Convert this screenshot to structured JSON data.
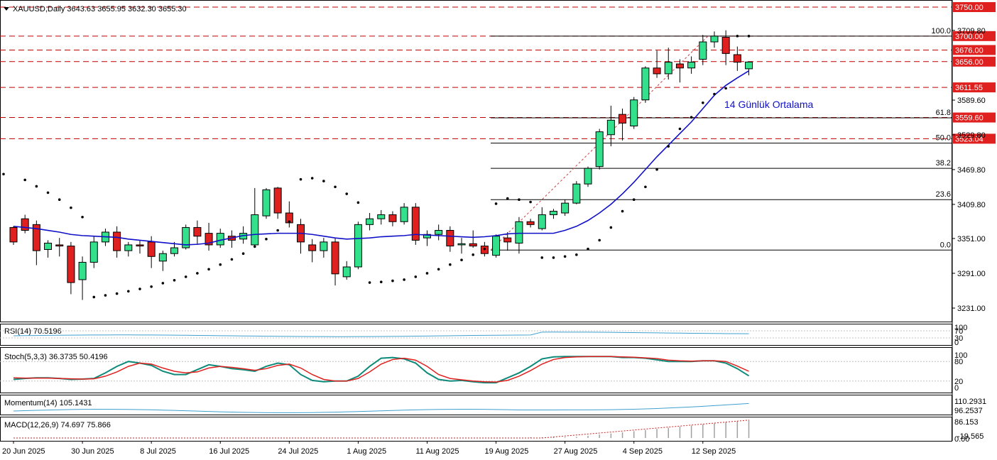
{
  "header": {
    "symbol_line": "XAUUSD,Daily  3643.63 3655.95 3632.30 3655.30"
  },
  "colors": {
    "bull": "#33e08c",
    "bear": "#e0201e",
    "candle_border": "#000000",
    "ma": "#1010c8",
    "sar": "#000000",
    "level_line": "#c00000",
    "level_badge": "#e0201e",
    "stoch_main": "#0e8a7a",
    "stoch_signal": "#e0201e",
    "rsi": "#40a0d0",
    "momentum": "#40a0d0",
    "macd_hist": "#a0a0a0",
    "macd_signal": "#d02020"
  },
  "chart_data": {
    "type": "candlestick",
    "symbol": "XAUUSD",
    "timeframe": "Daily",
    "ylim": [
      3200,
      3760
    ],
    "price_ticks": [
      "3750.00",
      "3709.80",
      "3700.00",
      "3676.00",
      "3656.00",
      "3611.55",
      "3589.60",
      "3559.60",
      "3529.80",
      "3523.04",
      "3469.80",
      "3409.80",
      "3351.00",
      "3291.00",
      "3231.00"
    ],
    "date_labels": [
      {
        "i": 0,
        "label": "20 Jun 2025"
      },
      {
        "i": 6,
        "label": "30 Jun 2025"
      },
      {
        "i": 12,
        "label": "8 Jul 2025"
      },
      {
        "i": 18,
        "label": "16 Jul 2025"
      },
      {
        "i": 24,
        "label": "24 Jul 2025"
      },
      {
        "i": 30,
        "label": "1 Aug 2025"
      },
      {
        "i": 36,
        "label": "11 Aug 2025"
      },
      {
        "i": 42,
        "label": "19 Aug 2025"
      },
      {
        "i": 48,
        "label": "27 Aug 2025"
      },
      {
        "i": 54,
        "label": "4 Sep 2025"
      },
      {
        "i": 60,
        "label": "12 Sep 2025"
      }
    ],
    "candles": [
      [
        3370,
        3372,
        3340,
        3345
      ],
      [
        3385,
        3392,
        3360,
        3365
      ],
      [
        3375,
        3382,
        3305,
        3330
      ],
      [
        3332,
        3348,
        3318,
        3343
      ],
      [
        3340,
        3352,
        3320,
        3338
      ],
      [
        3338,
        3345,
        3255,
        3275
      ],
      [
        3280,
        3320,
        3245,
        3310
      ],
      [
        3310,
        3355,
        3300,
        3345
      ],
      [
        3345,
        3368,
        3338,
        3362
      ],
      [
        3362,
        3372,
        3318,
        3330
      ],
      [
        3330,
        3345,
        3320,
        3340
      ],
      [
        3340,
        3348,
        3325,
        3338
      ],
      [
        3345,
        3355,
        3300,
        3320
      ],
      [
        3312,
        3330,
        3295,
        3325
      ],
      [
        3325,
        3345,
        3320,
        3335
      ],
      [
        3335,
        3375,
        3332,
        3370
      ],
      [
        3370,
        3382,
        3340,
        3355
      ],
      [
        3360,
        3378,
        3330,
        3340
      ],
      [
        3340,
        3368,
        3335,
        3360
      ],
      [
        3355,
        3365,
        3335,
        3348
      ],
      [
        3350,
        3372,
        3342,
        3360
      ],
      [
        3340,
        3438,
        3335,
        3392
      ],
      [
        3390,
        3438,
        3385,
        3435
      ],
      [
        3438,
        3440,
        3385,
        3395
      ],
      [
        3395,
        3415,
        3370,
        3378
      ],
      [
        3375,
        3385,
        3325,
        3345
      ],
      [
        3340,
        3350,
        3310,
        3330
      ],
      [
        3330,
        3352,
        3318,
        3345
      ],
      [
        3345,
        3352,
        3270,
        3290
      ],
      [
        3285,
        3312,
        3280,
        3302
      ],
      [
        3302,
        3380,
        3298,
        3375
      ],
      [
        3375,
        3395,
        3365,
        3385
      ],
      [
        3385,
        3400,
        3375,
        3392
      ],
      [
        3392,
        3398,
        3372,
        3380
      ],
      [
        3380,
        3412,
        3375,
        3405
      ],
      [
        3405,
        3412,
        3340,
        3348
      ],
      [
        3352,
        3365,
        3338,
        3358
      ],
      [
        3358,
        3375,
        3348,
        3365
      ],
      [
        3365,
        3372,
        3328,
        3338
      ],
      [
        3340,
        3352,
        3325,
        3342
      ],
      [
        3342,
        3365,
        3335,
        3338
      ],
      [
        3338,
        3345,
        3320,
        3325
      ],
      [
        3322,
        3358,
        3318,
        3355
      ],
      [
        3352,
        3362,
        3330,
        3345
      ],
      [
        3343,
        3388,
        3325,
        3380
      ],
      [
        3380,
        3385,
        3370,
        3375
      ],
      [
        3368,
        3405,
        3365,
        3392
      ],
      [
        3392,
        3402,
        3385,
        3398
      ],
      [
        3395,
        3418,
        3390,
        3412
      ],
      [
        3412,
        3450,
        3410,
        3445
      ],
      [
        3445,
        3475,
        3440,
        3472
      ],
      [
        3475,
        3540,
        3470,
        3535
      ],
      [
        3530,
        3580,
        3510,
        3555
      ],
      [
        3565,
        3575,
        3520,
        3550
      ],
      [
        3545,
        3595,
        3540,
        3590
      ],
      [
        3590,
        3648,
        3585,
        3645
      ],
      [
        3645,
        3675,
        3628,
        3635
      ],
      [
        3635,
        3680,
        3625,
        3655
      ],
      [
        3652,
        3660,
        3620,
        3645
      ],
      [
        3645,
        3665,
        3635,
        3655
      ],
      [
        3660,
        3702,
        3650,
        3690
      ],
      [
        3690,
        3708,
        3680,
        3700
      ],
      [
        3698,
        3710,
        3650,
        3670
      ],
      [
        3668,
        3682,
        3640,
        3655
      ],
      [
        3643.63,
        3655.95,
        3632.3,
        3655.3
      ]
    ],
    "ma14": [
      3372,
      3370,
      3368,
      3365,
      3362,
      3358,
      3356,
      3355,
      3354,
      3353,
      3350,
      3348,
      3346,
      3344,
      3342,
      3340,
      3341,
      3343,
      3348,
      3352,
      3356,
      3358,
      3359,
      3360,
      3360,
      3360,
      3358,
      3355,
      3352,
      3350,
      3351,
      3352,
      3354,
      3355,
      3356,
      3358,
      3357,
      3356,
      3355,
      3354,
      3353,
      3354,
      3356,
      3359,
      3360,
      3360,
      3360,
      3360,
      3365,
      3372,
      3382,
      3395,
      3410,
      3428,
      3448,
      3470,
      3492,
      3512,
      3532,
      3552,
      3575,
      3598,
      3615,
      3628,
      3640
    ],
    "sar": [
      3462,
      3452,
      3441,
      3430,
      3418,
      3404,
      3388,
      3250,
      3253,
      3256,
      3260,
      3264,
      3268,
      3274,
      3279,
      3285,
      3291,
      3298,
      3306,
      3315,
      3325,
      3337,
      3350,
      3365,
      3380,
      3453,
      3455,
      3450,
      3440,
      3428,
      3413,
      3275,
      3276,
      3278,
      3280,
      3285,
      3291,
      3298,
      3306,
      3314,
      3323,
      3333,
      3411,
      3420,
      3418,
      3414,
      3318,
      3318,
      3320,
      3323,
      3333,
      3348,
      3370,
      3398,
      3418,
      3440,
      3470,
      3510,
      3540,
      3560,
      3585,
      3600,
      3610,
      3700,
      3700
    ],
    "fib_levels": [
      {
        "label": "100.0",
        "price": 3700.0
      },
      {
        "label": "61.8",
        "price": 3559.0
      },
      {
        "label": "50.0",
        "price": 3515.5
      },
      {
        "label": "38.2",
        "price": 3472.0
      },
      {
        "label": "23.6",
        "price": 3418.0
      },
      {
        "label": "0.0",
        "price": 3331.0
      }
    ],
    "sr_levels": [
      "3750.00",
      "3700.00",
      "3676.00",
      "3656.00",
      "3611.55",
      "3559.60",
      "3523.04"
    ],
    "ma_annotation": "14 Günlük Ortalama",
    "indicators": {
      "rsi": {
        "label": "RSI(14) 70.5196",
        "ticks": [
          "100",
          "70",
          "30",
          "0"
        ]
      },
      "stoch": {
        "label": "Stoch(5,3,3) 36.3735 50.4196",
        "ticks": [
          "100",
          "80",
          "20",
          "0"
        ],
        "main": [
          25,
          28,
          30,
          30,
          28,
          25,
          26,
          28,
          45,
          65,
          80,
          75,
          68,
          50,
          40,
          40,
          55,
          70,
          65,
          58,
          55,
          50,
          65,
          75,
          70,
          40,
          22,
          18,
          20,
          20,
          35,
          65,
          90,
          92,
          88,
          75,
          45,
          25,
          20,
          22,
          18,
          15,
          15,
          30,
          45,
          65,
          88,
          94,
          95,
          95,
          95,
          95,
          95,
          92,
          92,
          90,
          85,
          80,
          80,
          80,
          82,
          82,
          75,
          58,
          36
        ],
        "signal": [
          30,
          29,
          29,
          29,
          28,
          27,
          26,
          27,
          35,
          48,
          65,
          75,
          72,
          60,
          50,
          45,
          48,
          60,
          65,
          62,
          58,
          53,
          58,
          68,
          72,
          60,
          40,
          25,
          20,
          20,
          28,
          48,
          72,
          86,
          90,
          84,
          65,
          40,
          28,
          24,
          20,
          18,
          17,
          22,
          35,
          52,
          72,
          86,
          92,
          94,
          95,
          95,
          95,
          94,
          93,
          91,
          89,
          84,
          82,
          81,
          82,
          82,
          80,
          66,
          50
        ]
      },
      "momentum": {
        "label": "Momentum(14) 105.1431",
        "ticks": [
          "110.2931",
          "96.2537"
        ]
      },
      "macd": {
        "label": "MACD(12,26,9) 74.697 75.866",
        "ticks": [
          "86.153",
          "0.00",
          "-19.565"
        ]
      }
    }
  }
}
